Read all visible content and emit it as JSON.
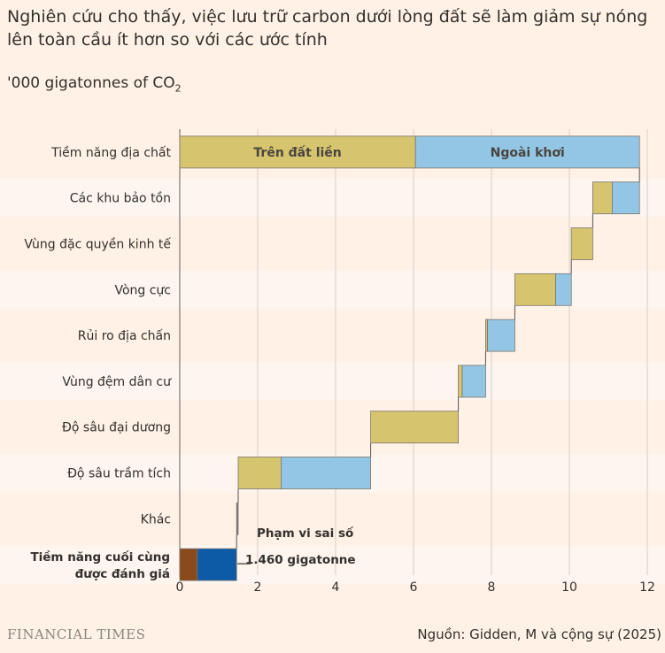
{
  "title": "Nghiên cứu cho thấy, việc lưu trữ carbon dưới lòng đất sẽ làm giảm sự nóng lên toàn cầu ít hơn so với các ước tính",
  "subtitle_prefix": "'000 gigatonnes of CO",
  "subtitle_sub": "2",
  "source": "Nguồn: Gidden, M và cộng sự (2025)",
  "brand": "FINANCIAL TIMES",
  "colors": {
    "onshore": "#d6c46e",
    "offshore": "#93c6e4",
    "final_brown": "#8a4a1c",
    "final_blue": "#0d5aa7",
    "band": "#fdf5ee",
    "grid": "#d8cfc6",
    "connector": "#555555"
  },
  "chart_data": {
    "type": "bar",
    "subtype": "waterfall",
    "xlim": [
      0,
      12
    ],
    "xticks": [
      0,
      2,
      4,
      6,
      8,
      10,
      12
    ],
    "grid": true,
    "categories": [
      "Tiềm năng địa chất",
      "Các khu bảo tồn",
      "Vùng đặc quyền kinh tế",
      "Vòng cực",
      "Rủi ro địa chấn",
      "Vùng đệm dân cư",
      "Độ sâu đại dương",
      "Độ sâu trầm tích",
      "Khác",
      "Tiềm năng cuối cùng được đánh giá"
    ],
    "bars": [
      {
        "segments": [
          {
            "start": 0,
            "end": 6.05,
            "type": "onshore",
            "label": "Trên đất liền"
          },
          {
            "start": 6.05,
            "end": 11.8,
            "type": "offshore",
            "label": "Ngoài khơi"
          }
        ]
      },
      {
        "segments": [
          {
            "start": 10.6,
            "end": 11.1,
            "type": "onshore"
          },
          {
            "start": 11.1,
            "end": 11.8,
            "type": "offshore"
          }
        ]
      },
      {
        "segments": [
          {
            "start": 10.05,
            "end": 10.6,
            "type": "onshore"
          }
        ]
      },
      {
        "segments": [
          {
            "start": 8.6,
            "end": 9.65,
            "type": "onshore"
          },
          {
            "start": 9.65,
            "end": 10.05,
            "type": "offshore"
          }
        ]
      },
      {
        "segments": [
          {
            "start": 7.85,
            "end": 7.9,
            "type": "onshore"
          },
          {
            "start": 7.9,
            "end": 8.6,
            "type": "offshore"
          }
        ]
      },
      {
        "segments": [
          {
            "start": 7.15,
            "end": 7.25,
            "type": "onshore"
          },
          {
            "start": 7.25,
            "end": 7.85,
            "type": "offshore"
          }
        ]
      },
      {
        "segments": [
          {
            "start": 4.9,
            "end": 7.15,
            "type": "onshore"
          }
        ]
      },
      {
        "segments": [
          {
            "start": 1.5,
            "end": 2.6,
            "type": "onshore"
          },
          {
            "start": 2.6,
            "end": 4.9,
            "type": "offshore"
          }
        ]
      },
      {
        "segments": [
          {
            "start": 1.46,
            "end": 1.5,
            "type": "other"
          }
        ]
      },
      {
        "segments": [
          {
            "start": 0,
            "end": 0.45,
            "type": "final_brown"
          },
          {
            "start": 0.45,
            "end": 1.46,
            "type": "final_blue"
          }
        ]
      }
    ],
    "annotations": {
      "error_label": "Phạm vi sai số",
      "value_label": "1.460 gigatonne",
      "value": 1.46
    }
  }
}
